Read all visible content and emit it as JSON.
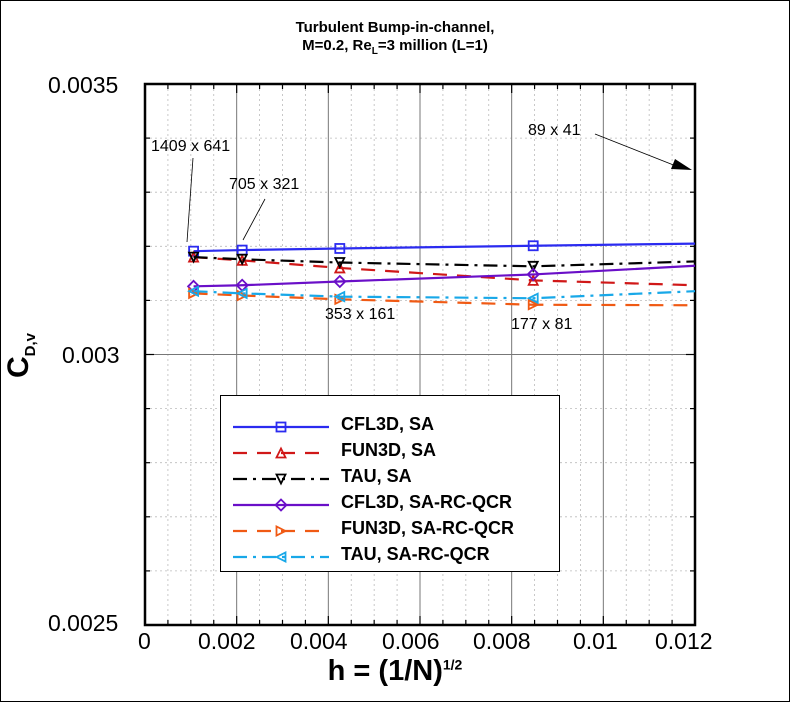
{
  "title_line1": "Turbulent Bump-in-channel,",
  "title_line2_pre": "M=0.2, Re",
  "title_line2_sub": "L",
  "title_line2_post": "=3 million (L=1)",
  "y_axis": {
    "label_main": "C",
    "label_sub": "D,v",
    "ticks": [
      "0.0035",
      "0.003",
      "0.0025"
    ]
  },
  "x_axis": {
    "label_main": "h = (1/N)",
    "label_sup": "1/2",
    "ticks": [
      "0",
      "0.002",
      "0.004",
      "0.006",
      "0.008",
      "0.01",
      "0.012"
    ]
  },
  "annotations": [
    "1409 x 641",
    "705 x 321",
    "353 x 161",
    "177 x 81",
    "89 x 41"
  ],
  "legend": [
    {
      "label": "CFL3D, SA",
      "color": "#2b2bf0",
      "marker": "square",
      "dash": "solid"
    },
    {
      "label": "FUN3D, SA",
      "color": "#d01818",
      "marker": "triangle-up",
      "dash": "dash"
    },
    {
      "label": "TAU, SA",
      "color": "#000000",
      "marker": "triangle-down",
      "dash": "dashdot"
    },
    {
      "label": "CFL3D, SA-RC-QCR",
      "color": "#6a0fc8",
      "marker": "diamond",
      "dash": "solid"
    },
    {
      "label": "FUN3D, SA-RC-QCR",
      "color": "#f05a14",
      "marker": "triangle-right",
      "dash": "dash"
    },
    {
      "label": "TAU, SA-RC-QCR",
      "color": "#18a8e8",
      "marker": "triangle-left",
      "dash": "dashdot"
    }
  ],
  "chart_data": {
    "type": "line",
    "title": "Turbulent Bump-in-channel, M=0.2, Re_L=3 million (L=1)",
    "xlabel": "h = (1/N)^1/2",
    "ylabel": "C_D,v",
    "xlim": [
      0,
      0.012
    ],
    "ylim": [
      0.0025,
      0.0035
    ],
    "grid": true,
    "legend_position": "lower center inside",
    "x": [
      0.00106,
      0.00212,
      0.00425,
      0.00847
    ],
    "series": [
      {
        "name": "CFL3D, SA",
        "values": [
          0.003191,
          0.003193,
          0.003196,
          0.003201
        ],
        "extrapolated_to_x": 0.012,
        "value_at_xmax": 0.003205
      },
      {
        "name": "FUN3D, SA",
        "values": [
          0.00318,
          0.003174,
          0.00316,
          0.003137
        ],
        "value_at_xmax": 0.003128
      },
      {
        "name": "TAU, SA",
        "values": [
          0.00318,
          0.003176,
          0.00317,
          0.003163
        ],
        "value_at_xmax": 0.003172
      },
      {
        "name": "CFL3D, SA-RC-QCR",
        "values": [
          0.003126,
          0.003128,
          0.003135,
          0.003148
        ],
        "value_at_xmax": 0.003164
      },
      {
        "name": "FUN3D, SA-RC-QCR",
        "values": [
          0.003113,
          0.003109,
          0.003102,
          0.003092
        ],
        "value_at_xmax": 0.003091
      },
      {
        "name": "TAU, SA-RC-QCR",
        "values": [
          0.003117,
          0.003113,
          0.003107,
          0.003104
        ],
        "value_at_xmax": 0.003117
      }
    ],
    "annotations": [
      {
        "text": "1409 x 641",
        "x": 0.00106
      },
      {
        "text": "705 x 321",
        "x": 0.00212
      },
      {
        "text": "353 x 161",
        "x": 0.00425
      },
      {
        "text": "177 x 81",
        "x": 0.00847
      },
      {
        "text": "89 x 41",
        "x": 0.01699,
        "note": "off-chart, arrow points right"
      }
    ]
  }
}
